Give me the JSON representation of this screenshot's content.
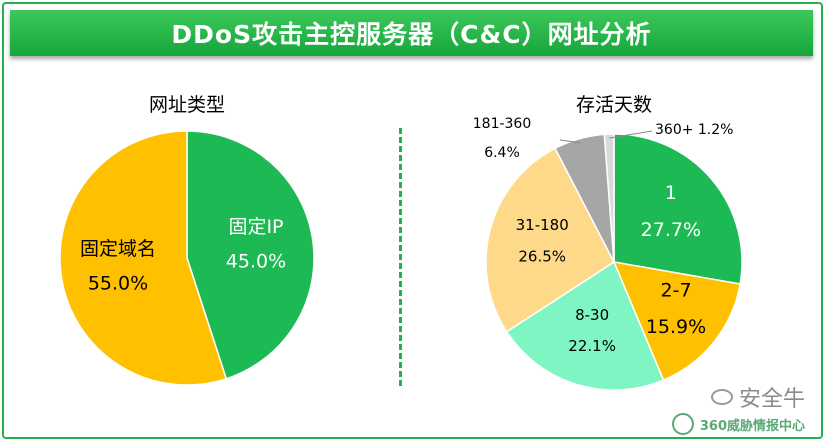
{
  "header": {
    "title": "DDoS攻击主控服务器（C&C）网址分析"
  },
  "chart_data": [
    {
      "type": "pie",
      "title": "网址类型",
      "slices": [
        {
          "label": "固定IP",
          "value": 45.0,
          "display": "45.0%",
          "color": "#1db954"
        },
        {
          "label": "固定域名",
          "value": 55.0,
          "display": "55.0%",
          "color": "#ffc000"
        }
      ]
    },
    {
      "type": "pie",
      "title": "存活天数",
      "slices": [
        {
          "label": "1",
          "value": 27.7,
          "display": "27.7%",
          "color": "#1db954"
        },
        {
          "label": "2-7",
          "value": 15.9,
          "display": "15.9%",
          "color": "#ffc000"
        },
        {
          "label": "8-30",
          "value": 22.1,
          "display": "22.1%",
          "color": "#7ef5c3"
        },
        {
          "label": "31-180",
          "value": 26.5,
          "display": "26.5%",
          "color": "#ffd98a"
        },
        {
          "label": "181-360",
          "value": 6.4,
          "display": "6.4%",
          "color": "#a6a6a6"
        },
        {
          "label": "360+",
          "value": 1.2,
          "display": "1.2%",
          "color": "#d9d9d9"
        }
      ]
    }
  ],
  "watermark": {
    "line1": "安全牛",
    "line2": "360威胁情报中心"
  }
}
